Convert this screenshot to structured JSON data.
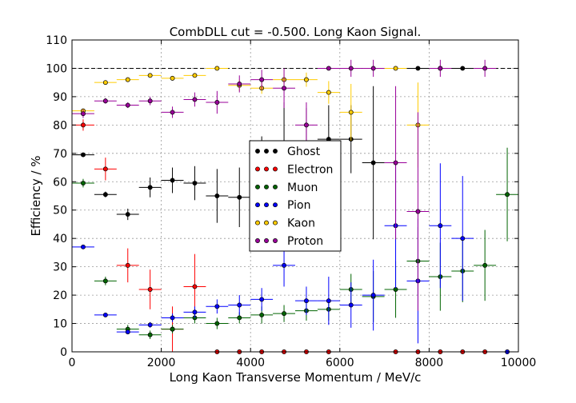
{
  "chart_data": {
    "type": "scatter",
    "title": "CombDLL cut = -0.500. Long Kaon Signal.",
    "xlabel": "Long Kaon Transverse Momentum / MeV/c",
    "ylabel": "Efficiency / %",
    "xlim": [
      0,
      10000
    ],
    "ylim": [
      0,
      110
    ],
    "xticks": [
      0,
      2000,
      4000,
      6000,
      8000,
      10000
    ],
    "yticks": [
      0,
      10,
      20,
      30,
      40,
      50,
      60,
      70,
      80,
      90,
      100,
      110
    ],
    "grid": true,
    "reference_line_y": 100,
    "legend_position": "center",
    "x_bin_half_width": 250,
    "series": [
      {
        "name": "Ghost",
        "color": "#000000",
        "points": [
          {
            "x": 250,
            "y": 69.5,
            "err": 0.5
          },
          {
            "x": 750,
            "y": 55.5,
            "err": 1
          },
          {
            "x": 1250,
            "y": 48.5,
            "err": 2
          },
          {
            "x": 1750,
            "y": 58,
            "err": 3.5
          },
          {
            "x": 2250,
            "y": 60.5,
            "err": 4.5
          },
          {
            "x": 2750,
            "y": 59.5,
            "err": 6
          },
          {
            "x": 3250,
            "y": 55,
            "err": 9.5
          },
          {
            "x": 3750,
            "y": 54.5,
            "err": 10.5
          },
          {
            "x": 4250,
            "y": 60,
            "err": 16
          },
          {
            "x": 4750,
            "y": 70,
            "err": 18
          },
          {
            "x": 5250,
            "y": 71,
            "err": 15
          },
          {
            "x": 5750,
            "y": 75,
            "err": 12
          },
          {
            "x": 6250,
            "y": 75,
            "err": 12
          },
          {
            "x": 6750,
            "y": 66.7,
            "err": 27
          },
          {
            "x": 7750,
            "y": 100,
            "err": 0
          },
          {
            "x": 8250,
            "y": 100,
            "err": 0
          },
          {
            "x": 8750,
            "y": 100,
            "err": 0
          }
        ]
      },
      {
        "name": "Electron",
        "color": "#ff0000",
        "points": [
          {
            "x": 250,
            "y": 80,
            "err": 2
          },
          {
            "x": 750,
            "y": 64.5,
            "err": 4
          },
          {
            "x": 1250,
            "y": 30.5,
            "err": 6
          },
          {
            "x": 1750,
            "y": 22,
            "err": 7
          },
          {
            "x": 2250,
            "y": 8,
            "err": 8
          },
          {
            "x": 2750,
            "y": 23,
            "err": 11.5
          },
          {
            "x": 3250,
            "y": 0,
            "err": 0
          },
          {
            "x": 3750,
            "y": 0,
            "err": 0
          },
          {
            "x": 4250,
            "y": 0,
            "err": 0
          },
          {
            "x": 4750,
            "y": 0,
            "err": 0
          },
          {
            "x": 5250,
            "y": 0,
            "err": 0
          },
          {
            "x": 5750,
            "y": 0,
            "err": 0
          },
          {
            "x": 7250,
            "y": 0,
            "err": 0
          },
          {
            "x": 7750,
            "y": 0,
            "err": 0
          },
          {
            "x": 8250,
            "y": 0,
            "err": 0
          },
          {
            "x": 8750,
            "y": 0,
            "err": 0
          },
          {
            "x": 9250,
            "y": 0,
            "err": 0
          }
        ]
      },
      {
        "name": "Muon",
        "color": "#006400",
        "points": [
          {
            "x": 250,
            "y": 59.5,
            "err": 1.5
          },
          {
            "x": 750,
            "y": 25,
            "err": 1.5
          },
          {
            "x": 1250,
            "y": 8,
            "err": 1.5
          },
          {
            "x": 1750,
            "y": 6,
            "err": 1.5
          },
          {
            "x": 2250,
            "y": 8,
            "err": 1.5
          },
          {
            "x": 2750,
            "y": 12,
            "err": 2
          },
          {
            "x": 3250,
            "y": 10,
            "err": 2
          },
          {
            "x": 3750,
            "y": 12,
            "err": 2
          },
          {
            "x": 4250,
            "y": 13,
            "err": 3
          },
          {
            "x": 4750,
            "y": 13.5,
            "err": 3
          },
          {
            "x": 5250,
            "y": 14.5,
            "err": 3.5
          },
          {
            "x": 5750,
            "y": 15,
            "err": 4
          },
          {
            "x": 6250,
            "y": 22,
            "err": 5.5
          },
          {
            "x": 6750,
            "y": 19.5,
            "err": 9
          },
          {
            "x": 7250,
            "y": 22,
            "err": 10
          },
          {
            "x": 7750,
            "y": 32,
            "err": 12
          },
          {
            "x": 8250,
            "y": 26.5,
            "err": 12
          },
          {
            "x": 8750,
            "y": 28.5,
            "err": 11
          },
          {
            "x": 9250,
            "y": 30.5,
            "err": 12.5
          },
          {
            "x": 9750,
            "y": 55.5,
            "err": 16.5
          }
        ]
      },
      {
        "name": "Pion",
        "color": "#0000ff",
        "points": [
          {
            "x": 250,
            "y": 37,
            "err": 0.5
          },
          {
            "x": 750,
            "y": 13,
            "err": 0.5
          },
          {
            "x": 1250,
            "y": 7,
            "err": 0.5
          },
          {
            "x": 1750,
            "y": 9.5,
            "err": 1
          },
          {
            "x": 2250,
            "y": 12,
            "err": 1.5
          },
          {
            "x": 2750,
            "y": 14,
            "err": 2
          },
          {
            "x": 3250,
            "y": 16,
            "err": 2.5
          },
          {
            "x": 3750,
            "y": 16.5,
            "err": 3.5
          },
          {
            "x": 4250,
            "y": 18.5,
            "err": 4
          },
          {
            "x": 4750,
            "y": 30.5,
            "err": 7.5
          },
          {
            "x": 5250,
            "y": 18,
            "err": 5
          },
          {
            "x": 5750,
            "y": 18,
            "err": 8.5
          },
          {
            "x": 6250,
            "y": 16.5,
            "err": 8
          },
          {
            "x": 6750,
            "y": 20,
            "err": 12.5
          },
          {
            "x": 7250,
            "y": 44.5,
            "err": 22
          },
          {
            "x": 7750,
            "y": 25,
            "err": 22
          },
          {
            "x": 8250,
            "y": 44.5,
            "err": 22
          },
          {
            "x": 8750,
            "y": 40,
            "err": 22
          },
          {
            "x": 9750,
            "y": 0,
            "err": 0
          }
        ]
      },
      {
        "name": "Kaon",
        "color": "#ffcc00",
        "points": [
          {
            "x": 250,
            "y": 85,
            "err": 0.5
          },
          {
            "x": 750,
            "y": 95,
            "err": 0.5
          },
          {
            "x": 1250,
            "y": 96,
            "err": 0.5
          },
          {
            "x": 1750,
            "y": 97.5,
            "err": 0.5
          },
          {
            "x": 2250,
            "y": 96.5,
            "err": 0.5
          },
          {
            "x": 2750,
            "y": 97.5,
            "err": 0.5
          },
          {
            "x": 3250,
            "y": 100,
            "err": 0
          },
          {
            "x": 3750,
            "y": 94,
            "err": 2
          },
          {
            "x": 4250,
            "y": 93,
            "err": 2
          },
          {
            "x": 4750,
            "y": 96,
            "err": 2
          },
          {
            "x": 5250,
            "y": 96,
            "err": 2.5
          },
          {
            "x": 5750,
            "y": 91.5,
            "err": 4
          },
          {
            "x": 6250,
            "y": 84.5,
            "err": 10
          },
          {
            "x": 7250,
            "y": 100,
            "err": 0
          },
          {
            "x": 7750,
            "y": 80,
            "err": 15
          }
        ]
      },
      {
        "name": "Proton",
        "color": "#990099",
        "points": [
          {
            "x": 250,
            "y": 84,
            "err": 1.5
          },
          {
            "x": 750,
            "y": 88.5,
            "err": 1
          },
          {
            "x": 1250,
            "y": 87,
            "err": 1
          },
          {
            "x": 1750,
            "y": 88.5,
            "err": 1.5
          },
          {
            "x": 2250,
            "y": 84.5,
            "err": 2
          },
          {
            "x": 2750,
            "y": 89,
            "err": 2.5
          },
          {
            "x": 3250,
            "y": 88,
            "err": 4
          },
          {
            "x": 3750,
            "y": 94.5,
            "err": 3
          },
          {
            "x": 4250,
            "y": 96,
            "err": 3.5
          },
          {
            "x": 4750,
            "y": 93,
            "err": 7
          },
          {
            "x": 5250,
            "y": 80,
            "err": 8
          },
          {
            "x": 5750,
            "y": 100,
            "err": 0
          },
          {
            "x": 6250,
            "y": 100,
            "err": 3
          },
          {
            "x": 6750,
            "y": 100,
            "err": 3
          },
          {
            "x": 7250,
            "y": 66.7,
            "err": 27
          },
          {
            "x": 7750,
            "y": 49.5,
            "err": 35
          },
          {
            "x": 8250,
            "y": 100,
            "err": 3
          },
          {
            "x": 9250,
            "y": 100,
            "err": 3
          }
        ]
      }
    ]
  }
}
